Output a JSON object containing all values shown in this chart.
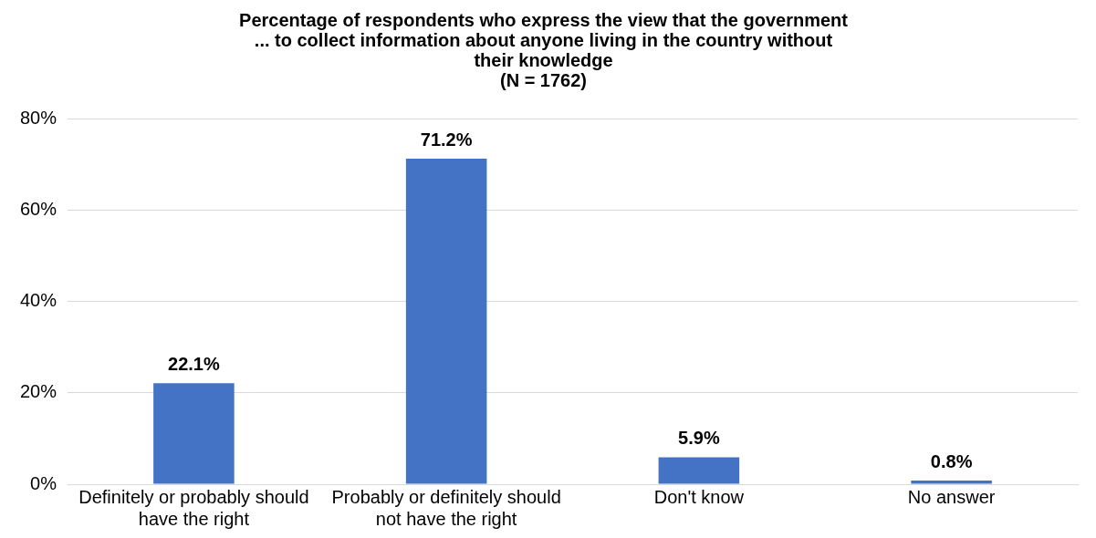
{
  "chart_data": {
    "type": "bar",
    "title": "Percentage of respondents who express the view that the government\n... to collect information about anyone living in the country without\ntheir knowledge\n(N = 1762)",
    "categories": [
      "Definitely or probably should have the right",
      "Probably or definitely should not have the right",
      "Don't know",
      "No answer"
    ],
    "values": [
      22.1,
      71.2,
      5.9,
      0.8
    ],
    "color": "#4472c4",
    "value_labels": [
      "22.1%",
      "71.2%",
      "5.9%",
      "0.8%"
    ],
    "ylim": [
      0,
      80
    ],
    "yticks": [
      {
        "value": 0,
        "label": "0%"
      },
      {
        "value": 20,
        "label": "20%"
      },
      {
        "value": 40,
        "label": "40%"
      },
      {
        "value": 60,
        "label": "60%"
      },
      {
        "value": 80,
        "label": "80%"
      }
    ],
    "grid": "y"
  }
}
